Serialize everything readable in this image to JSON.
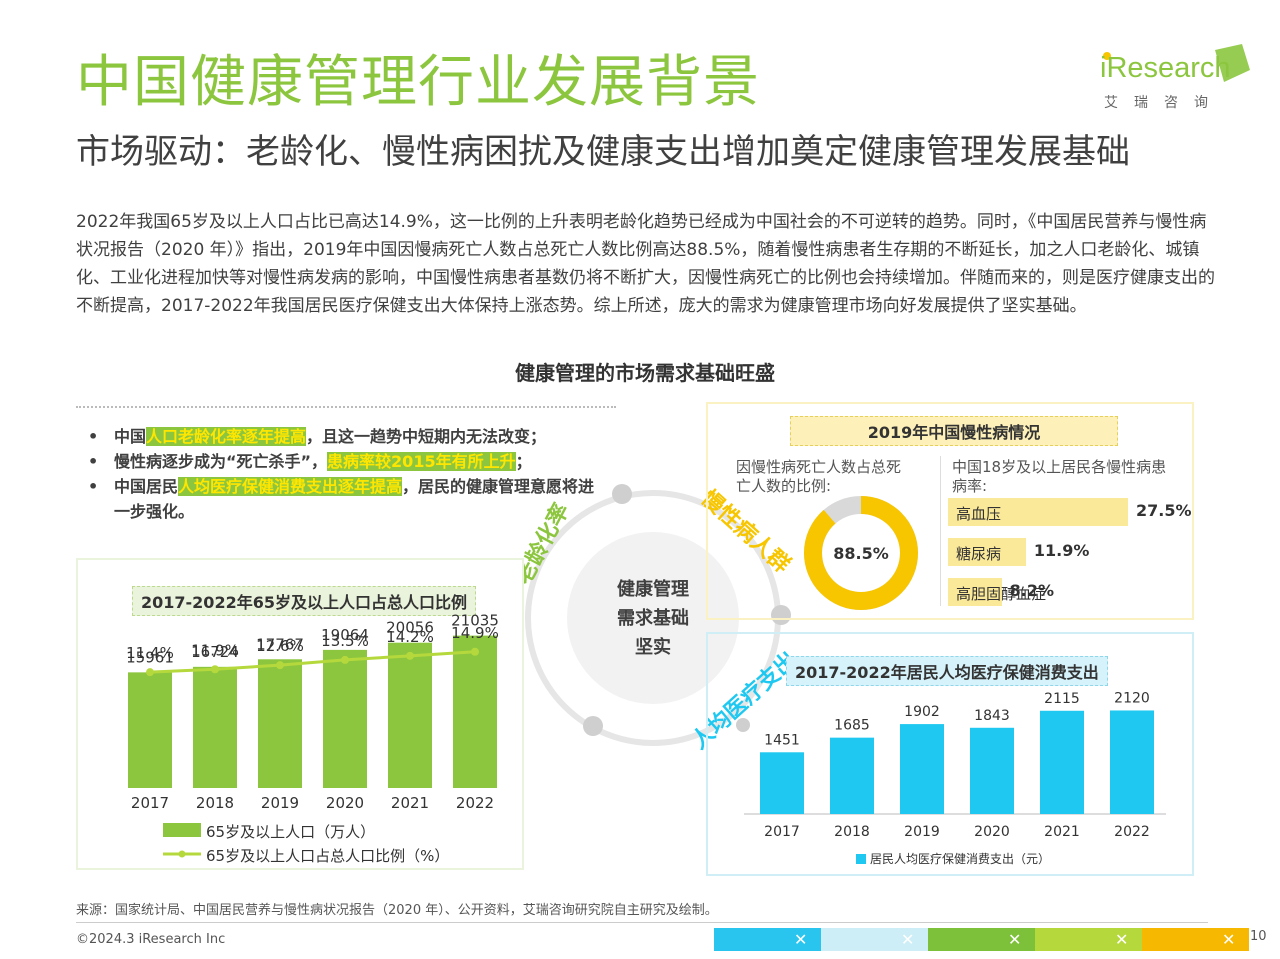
{
  "header": {
    "title": "中国健康管理行业发展背景",
    "subtitle": "市场驱动：老龄化、慢性病困扰及健康支出增加奠定健康管理发展基础",
    "logo_text": "iResearch",
    "logo_cn": "艾瑞咨询"
  },
  "intro": "2022年我国65岁及以上人口占比已高达14.9%，这一比例的上升表明老龄化趋势已经成为中国社会的不可逆转的趋势。同时，《中国居民营养与慢性病状况报告（2020 年）》指出，2019年中国因慢病死亡人数占总死亡人数比例高达88.5%，随着慢性病患者生存期的不断延长，加之人口老龄化、城镇化、工业化进程加快等对慢性病发病的影响，中国慢性病患者基数仍将不断扩大，因慢性病死亡的比例也会持续增加。伴随而来的，则是医疗健康支出的不断提高，2017-2022年我国居民医疗保健支出大体保持上涨态势。综上所述，庞大的需求为健康管理市场向好发展提供了坚实基础。",
  "section_title": "健康管理的市场需求基础旺盛",
  "bullets": [
    {
      "pre": "中国",
      "hl": "人口老龄化率逐年提高",
      "post": "，且这一趋势中短期内无法改变；"
    },
    {
      "pre": "慢性病逐步成为“死亡杀手”，",
      "hl": "患病率较2015年有所上升",
      "post": "；"
    },
    {
      "pre": "中国居民",
      "hl": "人均医疗保健消费支出逐年提高",
      "post": "，居民的健康管理意愿将进一步强化。"
    }
  ],
  "center": {
    "lines": [
      "健康管理",
      "需求基础",
      "坚实"
    ],
    "arc_labels": [
      "老龄化率",
      "慢性病人群",
      "人均医疗支出"
    ]
  },
  "colors": {
    "green": "#8cc63f",
    "yellow": "#f7c600",
    "blue": "#1ec8f0",
    "light_yellow": "#fbe99a"
  },
  "chart_data": [
    {
      "type": "bar",
      "title": "2017-2022年65岁及以上人口占总人口比例",
      "categories": [
        "2017",
        "2018",
        "2019",
        "2020",
        "2021",
        "2022"
      ],
      "series": [
        {
          "name": "65岁及以上人口（万人）",
          "values": [
            15961,
            16724,
            17767,
            19064,
            20056,
            21035
          ]
        },
        {
          "name": "65岁及以上人口占总人口比例（%）",
          "type": "line",
          "values": [
            11.4,
            11.9,
            12.6,
            13.5,
            14.2,
            14.9
          ],
          "labels": [
            "11.4%",
            "11.9%",
            "12.6%",
            "13.5%",
            "14.2%",
            "14.9%"
          ]
        }
      ]
    },
    {
      "type": "pie",
      "title": "2019年中国慢性病情况",
      "caption": "因慢性病死亡人数占总死亡人数的比例:",
      "value": 88.5,
      "label": "88.5%"
    },
    {
      "type": "bar",
      "orientation": "horizontal",
      "caption": "中国18岁及以上居民各慢性病患病率:",
      "categories": [
        "高血压",
        "糖尿病",
        "高胆固醇血症"
      ],
      "values": [
        27.5,
        11.9,
        8.2
      ],
      "labels": [
        "27.5%",
        "11.9%",
        "8.2%"
      ]
    },
    {
      "type": "bar",
      "title": "2017-2022年居民人均医疗保健消费支出",
      "categories": [
        "2017",
        "2018",
        "2019",
        "2020",
        "2021",
        "2022"
      ],
      "series": [
        {
          "name": "居民人均医疗保健消费支出（元）",
          "values": [
            1451,
            1685,
            1902,
            1843,
            2115,
            2120
          ]
        }
      ]
    }
  ],
  "footer": {
    "source": "来源：国家统计局、中国居民营养与慢性病状况报告（2020 年）、公开资料，艾瑞咨询研究院自主研究及绘制。",
    "copyright": "©2024.3 iResearch Inc",
    "page": "10",
    "strip_colors": [
      "#29c5ef",
      "#cdeef6",
      "#7dc13a",
      "#b5d93c",
      "#f6b800"
    ]
  }
}
